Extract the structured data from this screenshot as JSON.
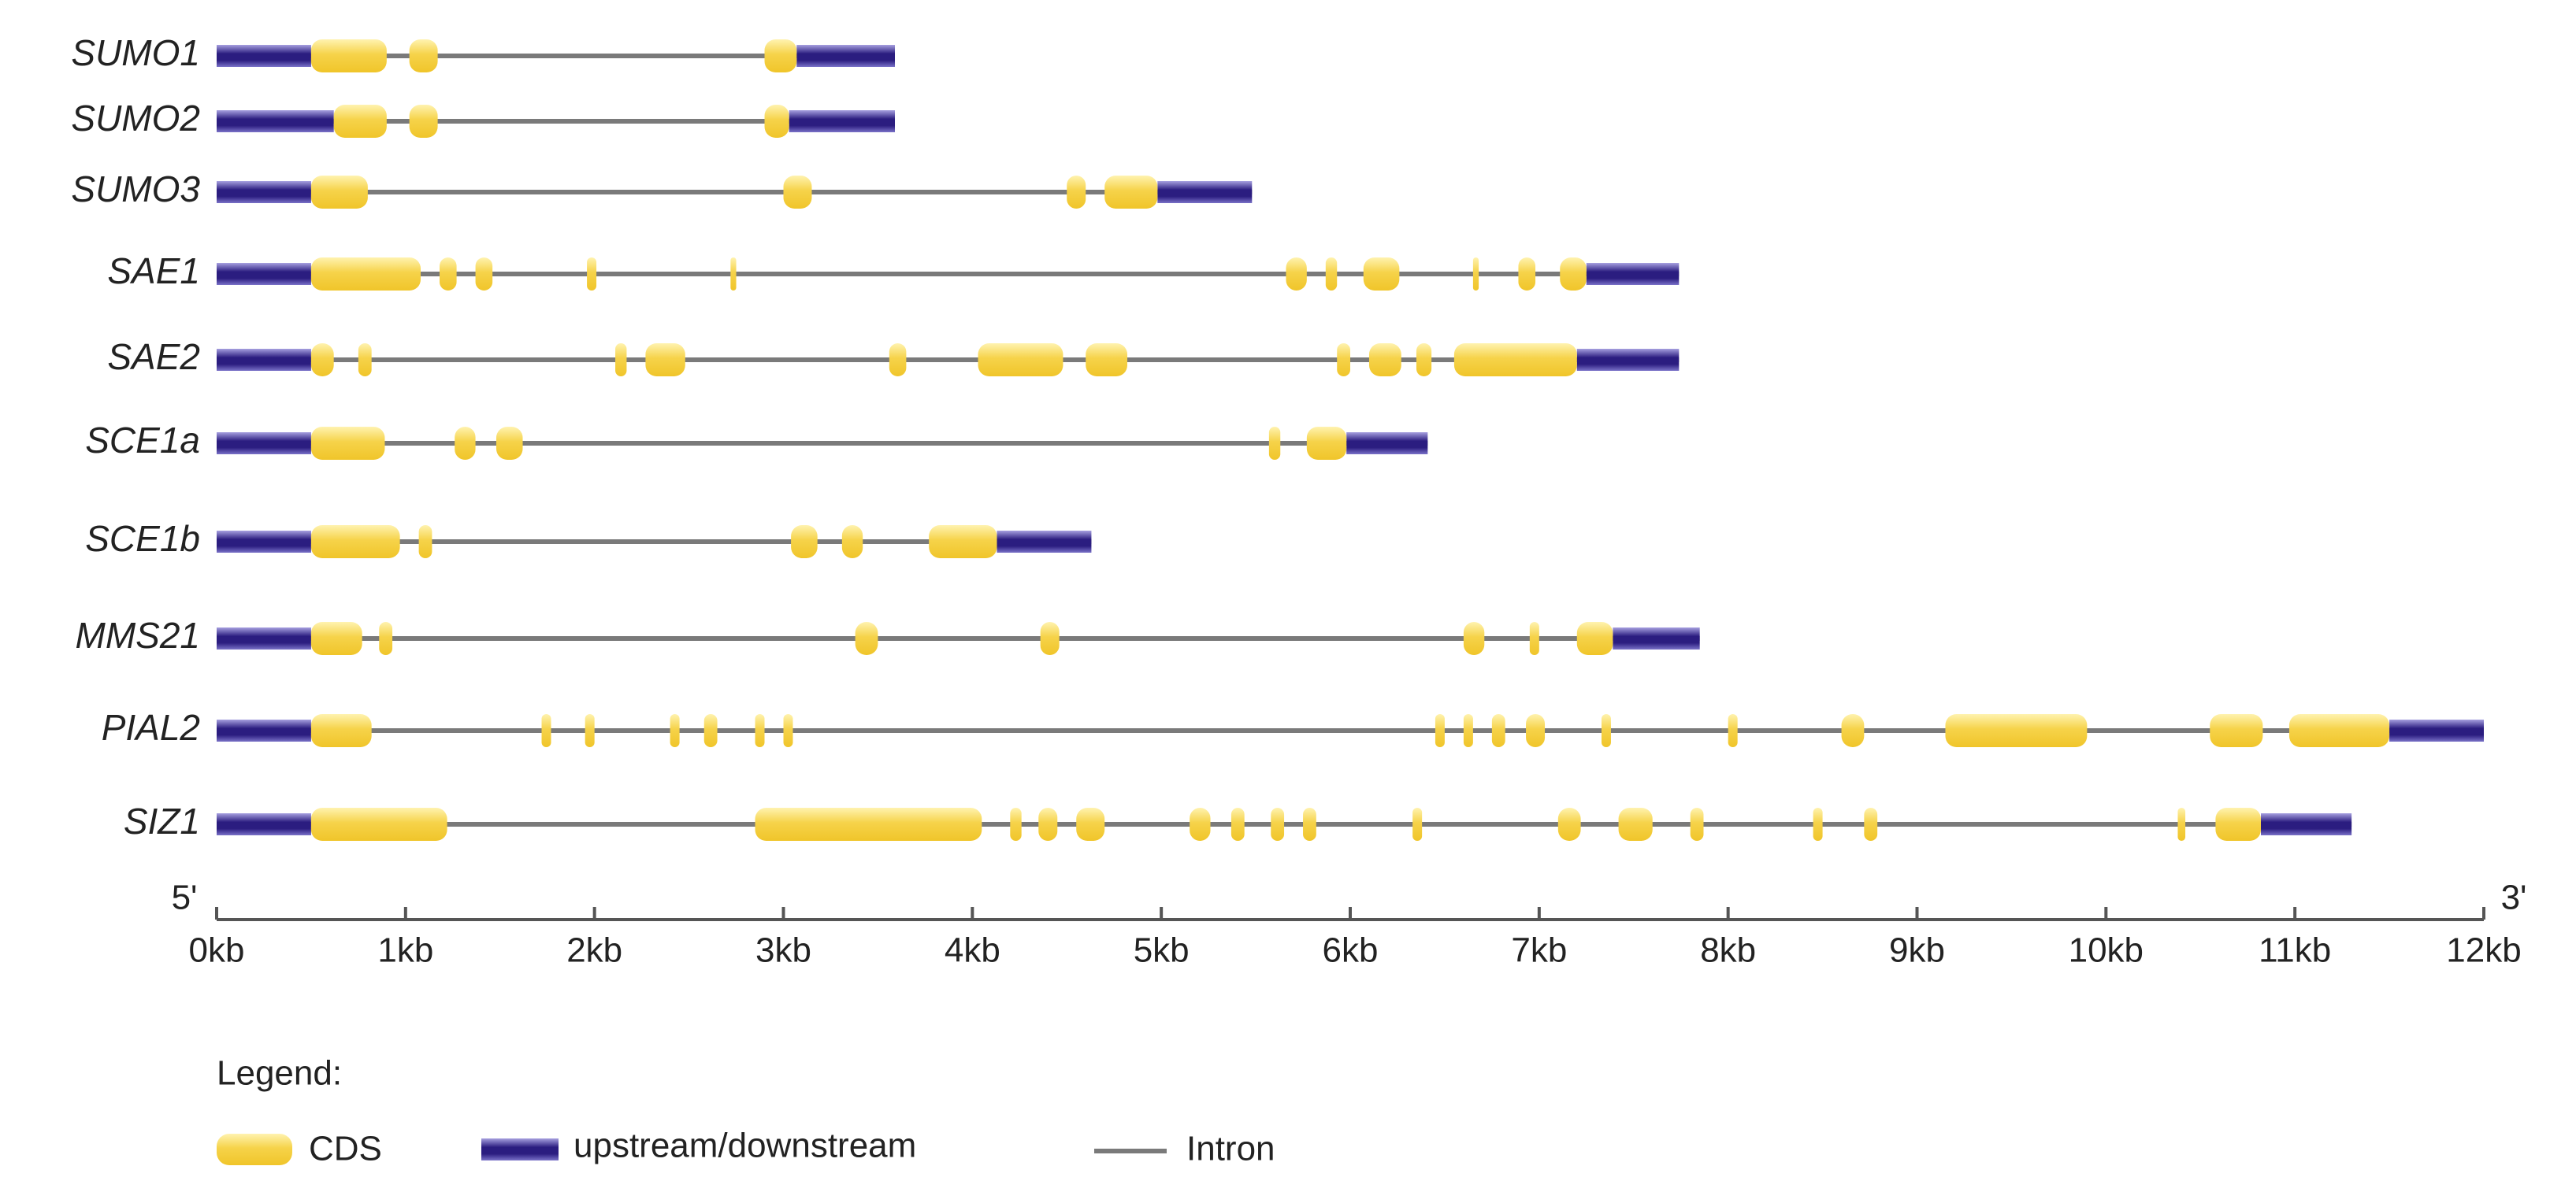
{
  "chart_data": {
    "type": "gene-structure",
    "xlim": [
      0,
      12
    ],
    "xticks": [
      {
        "value": 0,
        "label": "0kb"
      },
      {
        "value": 1,
        "label": "1kb"
      },
      {
        "value": 2,
        "label": "2kb"
      },
      {
        "value": 3,
        "label": "3kb"
      },
      {
        "value": 4,
        "label": "4kb"
      },
      {
        "value": 5,
        "label": "5kb"
      },
      {
        "value": 6,
        "label": "6kb"
      },
      {
        "value": 7,
        "label": "7kb"
      },
      {
        "value": 8,
        "label": "8kb"
      },
      {
        "value": 9,
        "label": "9kb"
      },
      {
        "value": 10,
        "label": "10kb"
      },
      {
        "value": 11,
        "label": "11kb"
      },
      {
        "value": 12,
        "label": "12kb"
      }
    ],
    "axis_start_label": "5'",
    "axis_end_label": "3'",
    "legend_title": "Legend:",
    "legend": [
      "CDS",
      "upstream/downstream",
      "Intron"
    ],
    "colors": {
      "cds": "#f5cf3c",
      "utr": "#2b1d80",
      "intron": "#7a7a7a"
    },
    "genes": [
      {
        "name": "SUMO1",
        "utr5": [
          0,
          0.5
        ],
        "exons": [
          [
            0.5,
            0.9
          ],
          [
            1.02,
            1.17
          ],
          [
            2.9,
            3.07
          ]
        ],
        "utr3": [
          3.07,
          3.59
        ]
      },
      {
        "name": "SUMO2",
        "utr5": [
          0,
          0.62
        ],
        "exons": [
          [
            0.62,
            0.9
          ],
          [
            1.02,
            1.17
          ],
          [
            2.9,
            3.03
          ]
        ],
        "utr3": [
          3.03,
          3.59
        ]
      },
      {
        "name": "SUMO3",
        "utr5": [
          0,
          0.5
        ],
        "exons": [
          [
            0.5,
            0.8
          ],
          [
            3.0,
            3.15
          ],
          [
            4.5,
            4.6
          ],
          [
            4.7,
            4.98
          ]
        ],
        "utr3": [
          4.98,
          5.48
        ]
      },
      {
        "name": "SAE1",
        "utr5": [
          0,
          0.5
        ],
        "exons": [
          [
            0.5,
            1.08
          ],
          [
            1.18,
            1.27
          ],
          [
            1.37,
            1.46
          ],
          [
            1.96,
            2.01
          ],
          [
            2.72,
            2.75
          ],
          [
            5.66,
            5.77
          ],
          [
            5.87,
            5.93
          ],
          [
            6.07,
            6.26
          ],
          [
            6.65,
            6.68
          ],
          [
            6.89,
            6.98
          ],
          [
            7.11,
            7.25
          ]
        ],
        "utr3": [
          7.25,
          7.74
        ]
      },
      {
        "name": "SAE2",
        "utr5": [
          0,
          0.5
        ],
        "exons": [
          [
            0.5,
            0.62
          ],
          [
            0.75,
            0.82
          ],
          [
            2.11,
            2.17
          ],
          [
            2.27,
            2.48
          ],
          [
            3.56,
            3.65
          ],
          [
            4.03,
            4.48
          ],
          [
            4.6,
            4.82
          ],
          [
            5.93,
            6.0
          ],
          [
            6.1,
            6.27
          ],
          [
            6.35,
            6.43
          ],
          [
            6.55,
            7.2
          ]
        ],
        "utr3": [
          7.2,
          7.74
        ]
      },
      {
        "name": "SCE1a",
        "utr5": [
          0,
          0.5
        ],
        "exons": [
          [
            0.5,
            0.89
          ],
          [
            1.26,
            1.37
          ],
          [
            1.48,
            1.62
          ],
          [
            5.57,
            5.63
          ],
          [
            5.77,
            5.98
          ]
        ],
        "utr3": [
          5.98,
          6.41
        ]
      },
      {
        "name": "SCE1b",
        "utr5": [
          0,
          0.5
        ],
        "exons": [
          [
            0.5,
            0.97
          ],
          [
            1.07,
            1.14
          ],
          [
            3.04,
            3.18
          ],
          [
            3.31,
            3.42
          ],
          [
            3.77,
            4.13
          ]
        ],
        "utr3": [
          4.13,
          4.63
        ]
      },
      {
        "name": "MMS21",
        "utr5": [
          0,
          0.5
        ],
        "exons": [
          [
            0.5,
            0.77
          ],
          [
            0.86,
            0.93
          ],
          [
            3.38,
            3.5
          ],
          [
            4.36,
            4.46
          ],
          [
            6.6,
            6.71
          ],
          [
            6.95,
            7.0
          ],
          [
            7.2,
            7.39
          ]
        ],
        "utr3": [
          7.39,
          7.85
        ]
      },
      {
        "name": "PIAL2",
        "utr5": [
          0,
          0.5
        ],
        "exons": [
          [
            0.5,
            0.82
          ],
          [
            1.72,
            1.77
          ],
          [
            1.95,
            2.0
          ],
          [
            2.4,
            2.45
          ],
          [
            2.58,
            2.65
          ],
          [
            2.85,
            2.9
          ],
          [
            3.0,
            3.05
          ],
          [
            6.45,
            6.5
          ],
          [
            6.6,
            6.65
          ],
          [
            6.75,
            6.82
          ],
          [
            6.93,
            7.03
          ],
          [
            7.33,
            7.38
          ],
          [
            8.0,
            8.05
          ],
          [
            8.6,
            8.72
          ],
          [
            9.15,
            9.9
          ],
          [
            10.55,
            10.83
          ],
          [
            10.97,
            11.5
          ]
        ],
        "utr3": [
          11.5,
          12
        ]
      },
      {
        "name": "SIZ1",
        "utr5": [
          0,
          0.5
        ],
        "exons": [
          [
            0.5,
            1.22
          ],
          [
            2.85,
            4.05
          ],
          [
            4.2,
            4.26
          ],
          [
            4.35,
            4.45
          ],
          [
            4.55,
            4.7
          ],
          [
            5.15,
            5.26
          ],
          [
            5.37,
            5.44
          ],
          [
            5.58,
            5.65
          ],
          [
            5.75,
            5.82
          ],
          [
            6.33,
            6.38
          ],
          [
            7.1,
            7.22
          ],
          [
            7.42,
            7.6
          ],
          [
            7.8,
            7.87
          ],
          [
            8.45,
            8.5
          ],
          [
            8.72,
            8.79
          ],
          [
            10.38,
            10.42
          ],
          [
            10.58,
            10.82
          ]
        ],
        "utr3": [
          10.82,
          11.3
        ]
      }
    ]
  }
}
